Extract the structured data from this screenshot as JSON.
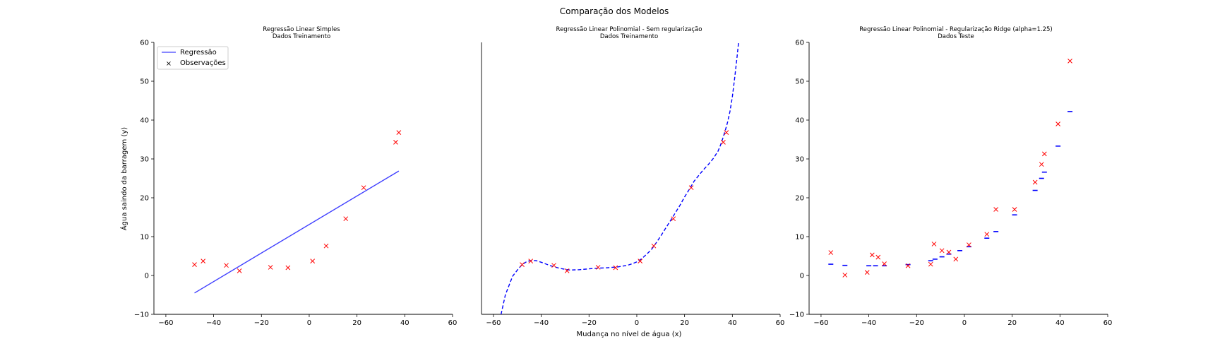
{
  "figure": {
    "suptitle": "Comparação dos Modelos"
  },
  "colors": {
    "line": "#0000ff",
    "marker": "#ff0000",
    "axis": "#000000"
  },
  "chart_data": [
    {
      "type": "line+scatter",
      "title_line1": "Regressão Linear Simples",
      "title_line2": "Dados Treinamento",
      "xlabel": "",
      "ylabel": "Água saindo da barragem (y)",
      "xlim": [
        -65,
        60
      ],
      "ylim": [
        -10,
        60
      ],
      "xticks": [
        -60,
        -40,
        -20,
        0,
        20,
        40,
        60
      ],
      "yticks": [
        -10,
        0,
        10,
        20,
        30,
        40,
        50,
        60
      ],
      "show_yticks": true,
      "grid": false,
      "legend": {
        "placement": "top-left",
        "line_label": "Regressão",
        "marker_label": "Observações"
      },
      "line": {
        "style": "solid",
        "x": [
          -48,
          37.5
        ],
        "y": [
          -4.5,
          26.9
        ]
      },
      "points": {
        "x": [
          -48,
          -44.4,
          -34.7,
          -29.2,
          -16.2,
          -8.9,
          1.4,
          7.1,
          15.3,
          22.8,
          36.2,
          37.5
        ],
        "y": [
          2.8,
          3.7,
          2.6,
          1.2,
          2.1,
          2.0,
          3.7,
          7.6,
          14.6,
          22.6,
          34.3,
          36.8
        ]
      }
    },
    {
      "type": "line+scatter",
      "title_line1": "Regressão Linear Polinomial - Sem regularização",
      "title_line2": "Dados Treinamento",
      "xlabel": "Mudança no nível de água (x)",
      "ylabel": "",
      "xlim": [
        -65,
        60
      ],
      "ylim": [
        -10,
        60
      ],
      "xticks": [
        -60,
        -40,
        -20,
        0,
        20,
        40,
        60
      ],
      "yticks": [],
      "show_yticks": false,
      "grid": false,
      "line": {
        "style": "dashed",
        "x": [
          -56.8,
          -55,
          -52,
          -50,
          -48,
          -46,
          -44,
          -42,
          -40,
          -36,
          -32,
          -28,
          -24,
          -20,
          -16,
          -12,
          -8,
          -4,
          -2,
          0,
          2,
          4,
          6,
          8,
          10,
          12,
          14,
          16,
          18,
          20,
          22,
          24,
          26,
          28,
          30,
          32,
          34,
          35,
          36,
          37,
          38,
          39,
          40,
          41,
          42,
          42.6
        ],
        "y": [
          -10,
          -5,
          -0.2,
          1.4,
          2.8,
          3.6,
          3.9,
          3.8,
          3.4,
          2.5,
          1.8,
          1.4,
          1.5,
          1.7,
          1.9,
          2.0,
          2.2,
          2.6,
          3.0,
          3.5,
          4.3,
          5.4,
          6.6,
          8.3,
          10.1,
          12.1,
          14.0,
          16.0,
          18.0,
          20.2,
          22.2,
          24.3,
          25.8,
          27.3,
          28.6,
          30.1,
          32.0,
          33.5,
          35.3,
          37.3,
          39.5,
          42.2,
          46,
          51,
          56.5,
          60
        ]
      },
      "points": {
        "x": [
          -48,
          -44.4,
          -34.7,
          -29.2,
          -16.2,
          -8.9,
          1.4,
          7.1,
          15.3,
          22.8,
          36.2,
          37.5
        ],
        "y": [
          2.8,
          3.7,
          2.6,
          1.2,
          2.1,
          2.0,
          3.7,
          7.6,
          14.6,
          22.6,
          34.3,
          36.8
        ]
      }
    },
    {
      "type": "step-markers+scatter",
      "title_line1": "Regressão Linear Polinomial - Regularização Ridge (alpha=1.25)",
      "title_line2": "Dados Teste",
      "xlabel": "",
      "ylabel": "",
      "xlim": [
        -65,
        60
      ],
      "ylim": [
        -10,
        60
      ],
      "xticks": [
        -60,
        -40,
        -20,
        0,
        20,
        40,
        60
      ],
      "yticks": [
        -10,
        0,
        10,
        20,
        30,
        40,
        50,
        60
      ],
      "show_yticks": true,
      "grid": false,
      "predictions": {
        "x": [
          -55.9,
          -50.0,
          -40.0,
          -37.2,
          -33.5,
          -23.6,
          -14.1,
          -12.3,
          -9.4,
          -6.5,
          -1.9,
          1.9,
          9.4,
          13.2,
          21.0,
          29.6,
          32.3,
          33.5,
          39.2,
          44.2
        ],
        "y": [
          2.9,
          2.6,
          2.5,
          2.5,
          2.5,
          2.8,
          3.8,
          4.2,
          4.8,
          5.5,
          6.4,
          7.4,
          9.6,
          11.3,
          15.6,
          21.9,
          25.0,
          26.6,
          33.3,
          42.2
        ]
      },
      "points": {
        "x": [
          -55.9,
          -50.0,
          -40.7,
          -38.6,
          -36.1,
          -33.5,
          -23.6,
          -14.1,
          -12.7,
          -9.4,
          -6.5,
          -3.6,
          1.9,
          9.4,
          13.2,
          21.0,
          29.6,
          32.3,
          33.5,
          39.2,
          44.2
        ],
        "y": [
          5.9,
          0.1,
          0.8,
          5.3,
          4.7,
          3.0,
          2.5,
          2.9,
          8.1,
          6.4,
          6.0,
          4.2,
          7.9,
          10.6,
          17.0,
          17.0,
          24.0,
          28.6,
          31.3,
          39.0,
          55.2
        ]
      }
    }
  ]
}
